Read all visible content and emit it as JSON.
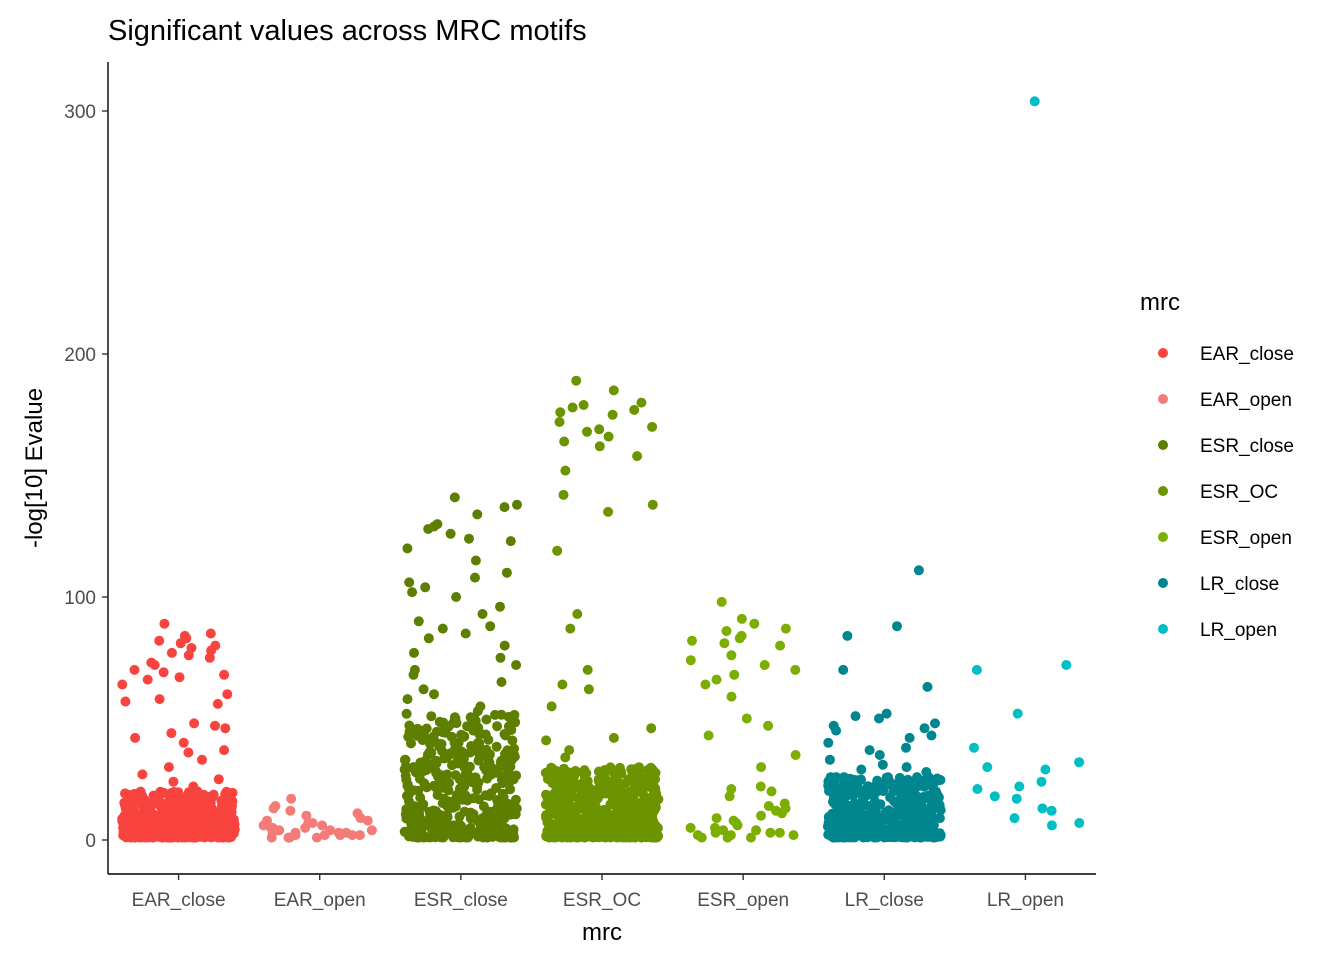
{
  "chart_data": {
    "type": "scatter",
    "subtype": "jitter strip plot",
    "title": "Significant values across MRC motifs",
    "xlabel": "mrc",
    "ylabel": "-log[10] Evalue",
    "categories": [
      "EAR_close",
      "EAR_open",
      "ESR_close",
      "ESR_OC",
      "ESR_open",
      "LR_close",
      "LR_open"
    ],
    "ylim": [
      -14,
      320
    ],
    "yticks": [
      0,
      100,
      200,
      300
    ],
    "grid": false,
    "legend": {
      "title": "mrc",
      "placement": "right",
      "entries": [
        "EAR_close",
        "EAR_open",
        "ESR_close",
        "ESR_OC",
        "ESR_open",
        "LR_close",
        "LR_open"
      ]
    },
    "colors": {
      "EAR_close": "#F8433F",
      "EAR_open": "#F37B78",
      "ESR_close": "#5E7E00",
      "ESR_OC": "#6B9400",
      "ESR_open": "#7CAE00",
      "LR_close": "#00868F",
      "LR_open": "#00BFC4"
    },
    "series": [
      {
        "name": "EAR_close",
        "category": "EAR_close",
        "notable_values": [
          89,
          85,
          84,
          83,
          82,
          81,
          80,
          79,
          78,
          77,
          76,
          75,
          73,
          72,
          70,
          69,
          68,
          67,
          66,
          64,
          60,
          58,
          57,
          56,
          48,
          47,
          46,
          44,
          42,
          40,
          37,
          36,
          33,
          30,
          27,
          25,
          24,
          22,
          20
        ],
        "dense_band": [
          1,
          20
        ],
        "dense_count": 500
      },
      {
        "name": "EAR_open",
        "category": "EAR_open",
        "notable_values": [
          17,
          14,
          13,
          12,
          11,
          10,
          9,
          8,
          8,
          7,
          7,
          6,
          6,
          5,
          5,
          5,
          4,
          4,
          4,
          3,
          3,
          3,
          3,
          2,
          2,
          2,
          2,
          2,
          1,
          1,
          1,
          1,
          1
        ],
        "dense_band": [
          0,
          0
        ],
        "dense_count": 0
      },
      {
        "name": "ESR_close",
        "category": "ESR_close",
        "notable_values": [
          141,
          138,
          137,
          134,
          130,
          129,
          128,
          126,
          124,
          123,
          120,
          115,
          110,
          108,
          106,
          104,
          102,
          100,
          96,
          93,
          90,
          88,
          87,
          85,
          83,
          80,
          77,
          75,
          72,
          70,
          68,
          65,
          62,
          60,
          58,
          55,
          53,
          50,
          48,
          45,
          43,
          40,
          38,
          35,
          33,
          30
        ],
        "dense_band": [
          1,
          52
        ],
        "dense_count": 420
      },
      {
        "name": "ESR_OC",
        "category": "ESR_OC",
        "notable_values": [
          189,
          185,
          180,
          179,
          178,
          177,
          176,
          175,
          172,
          170,
          169,
          168,
          166,
          164,
          162,
          158,
          152,
          142,
          138,
          135,
          119,
          93,
          87,
          70,
          64,
          62,
          55,
          46,
          42,
          41,
          37,
          34
        ],
        "dense_band": [
          1,
          30
        ],
        "dense_count": 600
      },
      {
        "name": "ESR_open",
        "category": "ESR_open",
        "notable_values": [
          98,
          91,
          89,
          87,
          86,
          84,
          83,
          82,
          81,
          80,
          76,
          74,
          72,
          70,
          68,
          66,
          64,
          59,
          50,
          47,
          43,
          35,
          30,
          22,
          21,
          20,
          18,
          15,
          14,
          13,
          12,
          11,
          10,
          9,
          8,
          7,
          6,
          5,
          5,
          4,
          4,
          3,
          3,
          3,
          2,
          2,
          2,
          1,
          1,
          1
        ],
        "dense_band": [
          0,
          0
        ],
        "dense_count": 0
      },
      {
        "name": "LR_close",
        "category": "LR_close",
        "notable_values": [
          111,
          88,
          84,
          70,
          63,
          52,
          51,
          50,
          48,
          47,
          46,
          45,
          43,
          42,
          40,
          38,
          37,
          35,
          33,
          31,
          30,
          29,
          28
        ],
        "dense_band": [
          1,
          26
        ],
        "dense_count": 480
      },
      {
        "name": "LR_open",
        "category": "LR_open",
        "notable_values": [
          304,
          72,
          70,
          52,
          38,
          32,
          30,
          29,
          24,
          22,
          21,
          18,
          17,
          13,
          12,
          9,
          7,
          6
        ],
        "dense_band": [
          0,
          0
        ],
        "dense_count": 0
      }
    ]
  }
}
